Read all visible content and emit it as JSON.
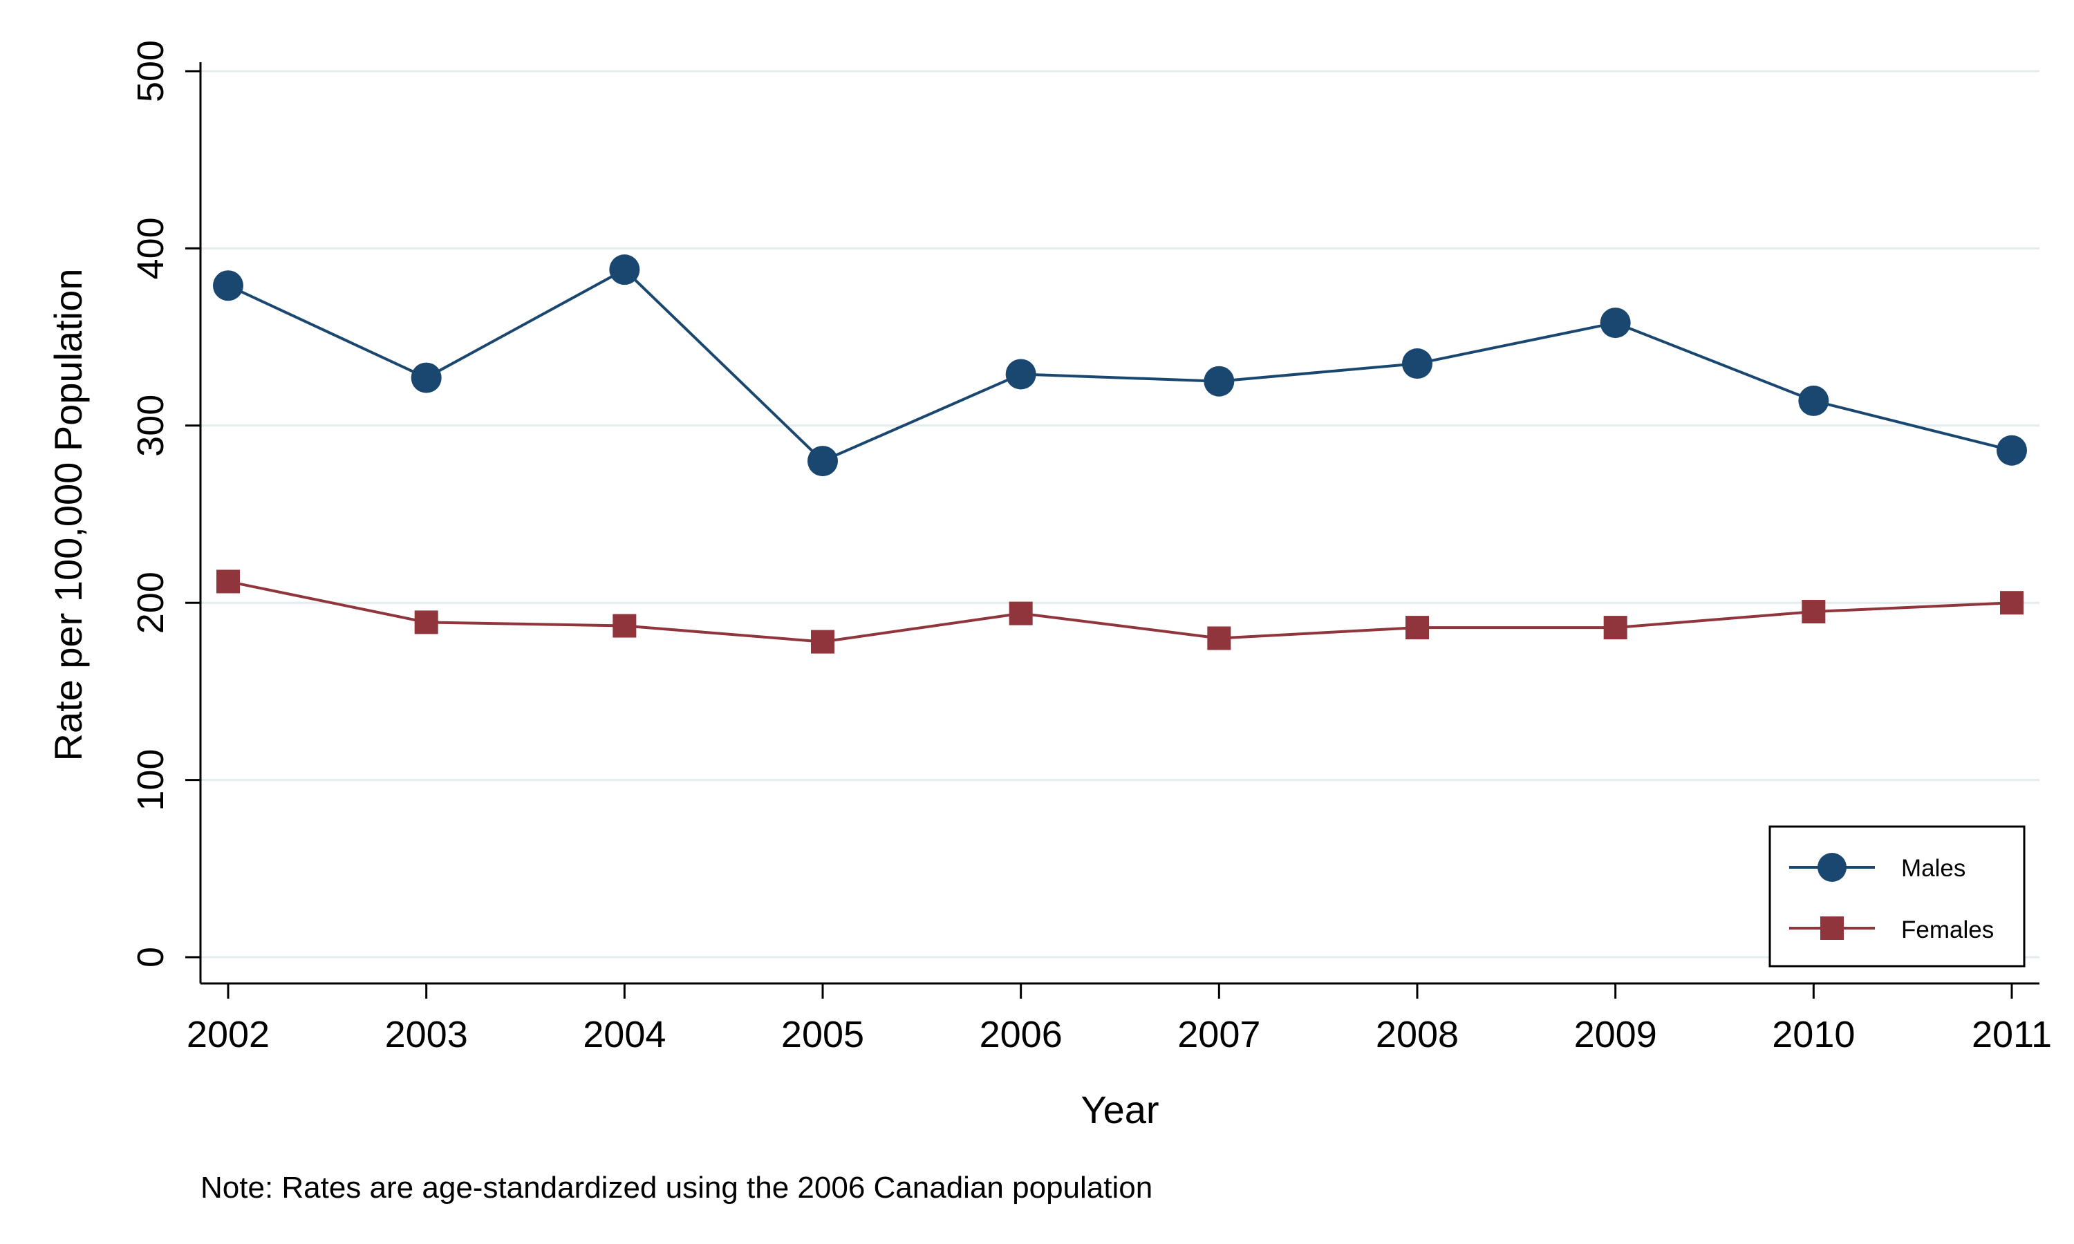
{
  "chart_data": {
    "type": "line",
    "title": "",
    "xlabel": "Year",
    "ylabel": "Rate per 100,000 Population",
    "note": "Note: Rates are age-standardized using the 2006 Canadian population",
    "x": [
      2002,
      2003,
      2004,
      2005,
      2006,
      2007,
      2008,
      2009,
      2010,
      2011
    ],
    "x_tick_labels": [
      "2002",
      "2003",
      "2004",
      "2005",
      "2006",
      "2007",
      "2008",
      "2009",
      "2010",
      "2011"
    ],
    "y_ticks": [
      0,
      100,
      200,
      300,
      400,
      500
    ],
    "y_tick_labels": [
      "0",
      "100",
      "200",
      "300",
      "400",
      "500"
    ],
    "ylim": [
      0,
      500
    ],
    "xlim": [
      2002,
      2011
    ],
    "grid": true,
    "legend_position": "bottom-right",
    "series": [
      {
        "name": "Males",
        "marker": "circle",
        "color": "#1a476f",
        "values": [
          379,
          327,
          388,
          280,
          329,
          325,
          335,
          358,
          314,
          286
        ]
      },
      {
        "name": "Females",
        "marker": "square",
        "color": "#90353b",
        "values": [
          212,
          189,
          187,
          178,
          194,
          180,
          186,
          186,
          195,
          200
        ]
      }
    ]
  }
}
